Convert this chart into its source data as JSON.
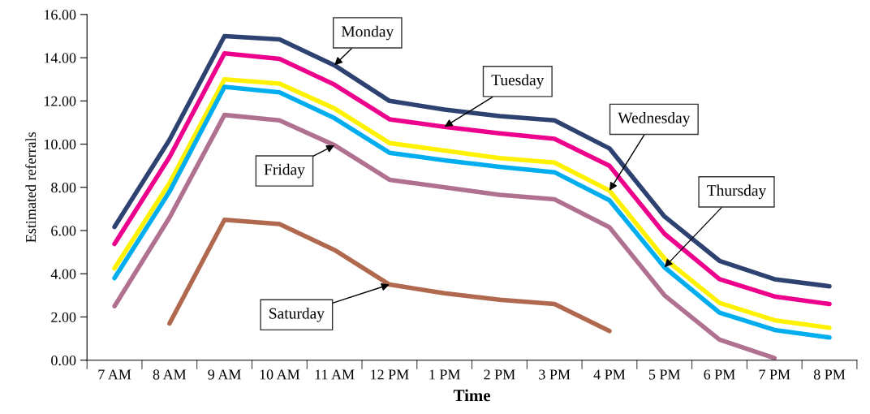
{
  "chart_data": {
    "type": "line",
    "xlabel": "Time",
    "ylabel": "Estimated referrals",
    "categories": [
      "7 AM",
      "8 AM",
      "9 AM",
      "10 AM",
      "11 AM",
      "12 PM",
      "1 PM",
      "2 PM",
      "3 PM",
      "4 PM",
      "5 PM",
      "6 PM",
      "7 PM",
      "8 PM"
    ],
    "series": [
      {
        "color": "#2e4272",
        "values": [
          6.17,
          10.2,
          15.0,
          14.85,
          13.65,
          12.0,
          11.6,
          11.3,
          11.1,
          9.8,
          6.65,
          4.6,
          3.75,
          3.42
        ]
      },
      {
        "color": "#ec008c",
        "values": [
          5.38,
          9.4,
          14.2,
          13.95,
          12.75,
          11.15,
          10.8,
          10.5,
          10.25,
          9.0,
          5.85,
          3.75,
          2.95,
          2.6
        ]
      },
      {
        "color": "#fff200",
        "values": [
          4.25,
          8.2,
          13.0,
          12.8,
          11.65,
          10.05,
          9.7,
          9.35,
          9.15,
          7.85,
          4.7,
          2.65,
          1.85,
          1.5
        ]
      },
      {
        "color": "#00aeef",
        "values": [
          3.8,
          7.8,
          12.65,
          12.4,
          11.2,
          9.6,
          9.25,
          8.95,
          8.7,
          7.4,
          4.3,
          2.2,
          1.4,
          1.05
        ]
      },
      {
        "color": "#b07090",
        "values": [
          2.5,
          6.6,
          11.35,
          11.1,
          9.95,
          8.35,
          8.0,
          7.65,
          7.45,
          6.15,
          3.0,
          0.95,
          0.1,
          null
        ]
      },
      {
        "color": "#b0684e",
        "values": [
          null,
          1.7,
          6.5,
          6.3,
          5.1,
          3.5,
          3.1,
          2.8,
          2.6,
          1.35,
          null,
          null,
          null,
          null
        ]
      }
    ],
    "annotations": [
      {
        "text": "Monday",
        "x": "11 AM",
        "y": 13.65
      },
      {
        "text": "Tuesday",
        "x": "1 PM",
        "y": 10.8
      },
      {
        "text": "Wednesday",
        "x": "4 PM",
        "y": 7.85
      },
      {
        "text": "Thursday",
        "x": "5 PM",
        "y": 4.3
      },
      {
        "text": "Friday",
        "x": "11 AM",
        "y": 9.95
      },
      {
        "text": "Saturday",
        "x": "12 PM",
        "y": 3.5
      }
    ],
    "ylim": [
      0,
      16
    ],
    "yticks": [
      {
        "value": 0,
        "label": "0.00"
      },
      {
        "value": 2,
        "label": "2.00"
      },
      {
        "value": 4,
        "label": "4.00"
      },
      {
        "value": 6,
        "label": "6.00"
      },
      {
        "value": 8,
        "label": "8.00"
      },
      {
        "value": 10,
        "label": "10.00"
      },
      {
        "value": 12,
        "label": "12.00"
      },
      {
        "value": 14,
        "label": "14.00"
      },
      {
        "value": 16,
        "label": "16.00"
      }
    ],
    "grid": false,
    "legend": false,
    "marker": "none",
    "line_style": "solid"
  }
}
